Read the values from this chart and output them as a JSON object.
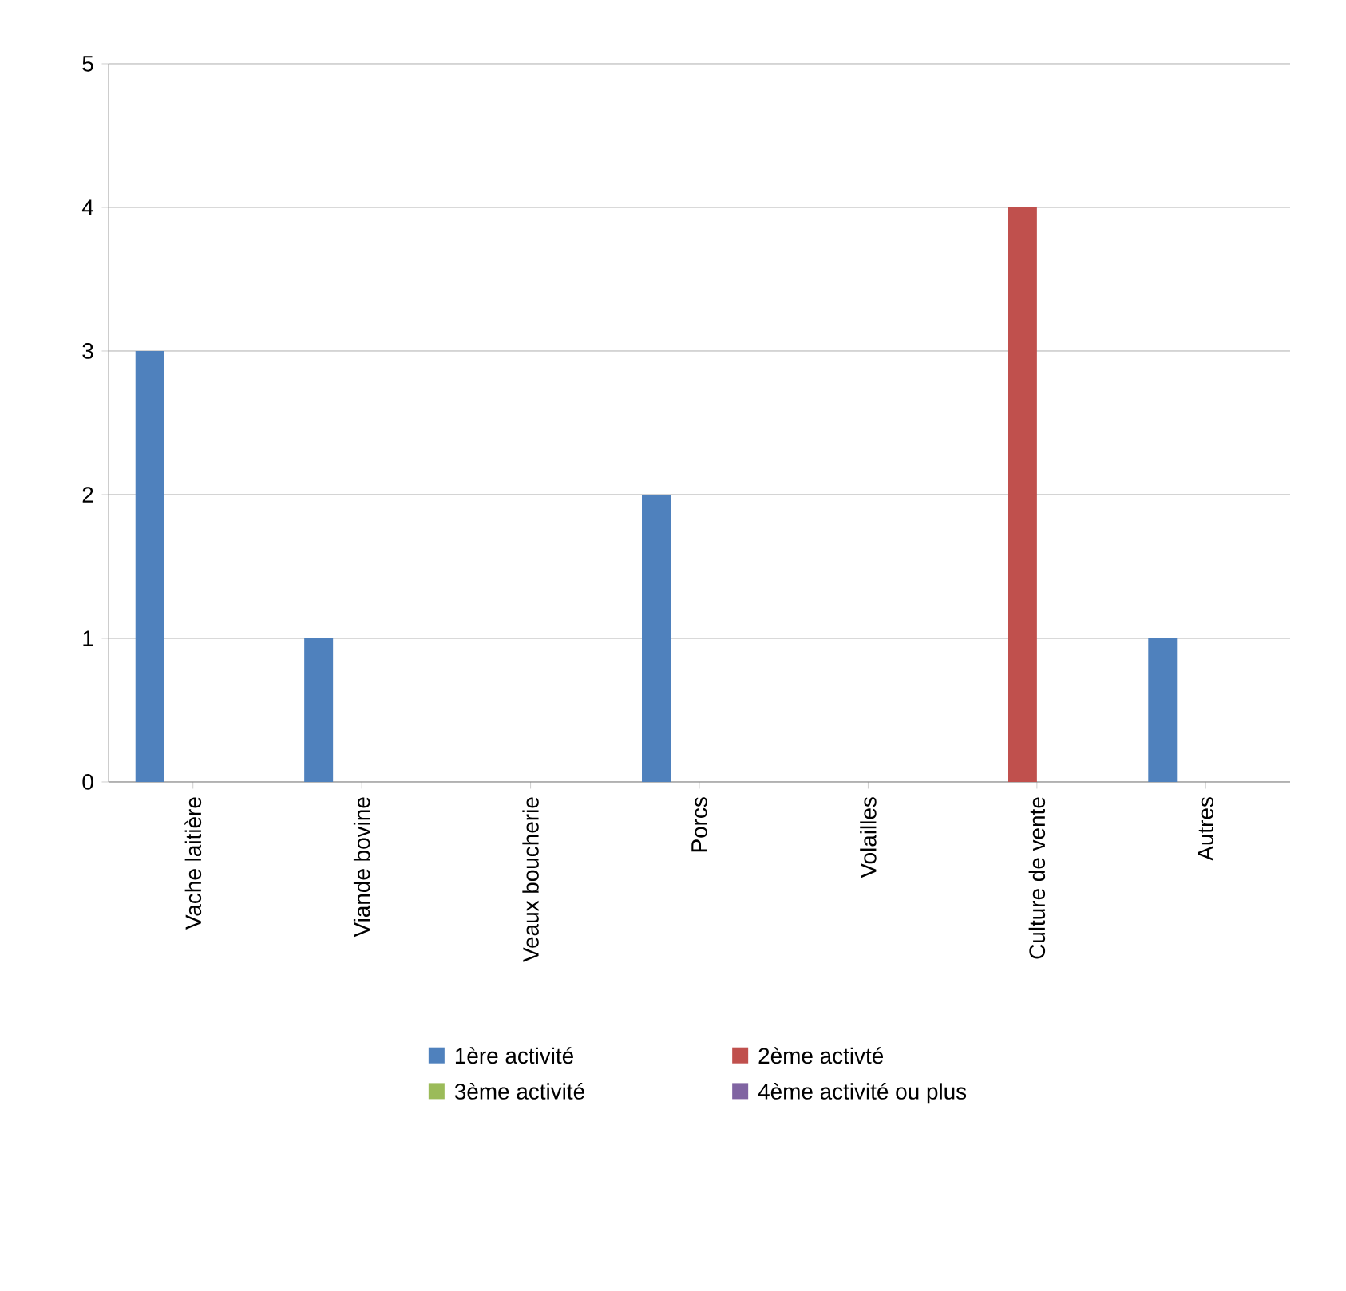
{
  "chart_data": {
    "type": "bar",
    "categories": [
      "Vache laitière",
      "Viande bovine",
      "Veaux boucherie",
      "Porcs",
      "Volailles",
      "Culture de vente",
      "Autres"
    ],
    "series": [
      {
        "name": "1ère activité",
        "color": "#4f81bd",
        "values": [
          3,
          1,
          0,
          2,
          0,
          0,
          1
        ]
      },
      {
        "name": "2ème activté",
        "color": "#c0504d",
        "values": [
          0,
          0,
          0,
          0,
          0,
          4,
          0
        ]
      },
      {
        "name": "3ème activité",
        "color": "#9bbb59",
        "values": [
          0,
          0,
          0,
          0,
          0,
          0,
          0
        ]
      },
      {
        "name": "4ème activité ou plus",
        "color": "#8064a2",
        "values": [
          0,
          0,
          0,
          0,
          0,
          0,
          0
        ]
      }
    ],
    "ylim": [
      0,
      5
    ],
    "yticks": [
      0,
      1,
      2,
      3,
      4,
      5
    ],
    "grid": "y",
    "legend": "bottom"
  }
}
